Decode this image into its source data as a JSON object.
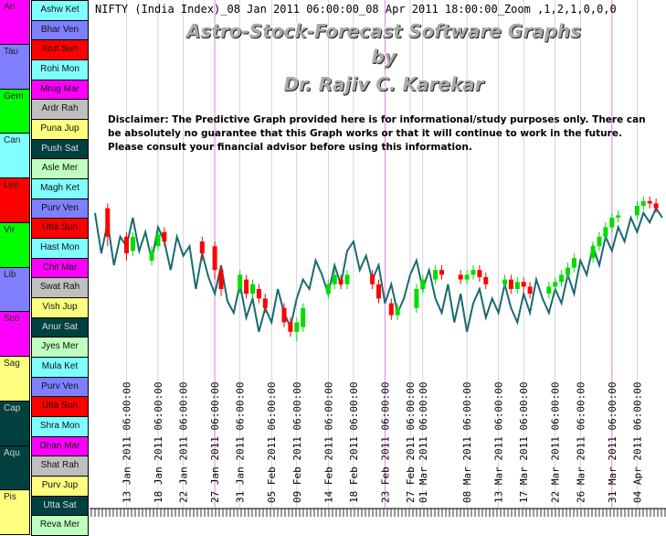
{
  "header": {
    "info_line": "NIFTY (India Index)_08 Jan 2011 06:00:00_08 Apr 2011 18:00:00_Zoom ,1,2,1,0,0,0",
    "title_line1": "Astro-Stock-Forecast Software Graphs",
    "title_line2": "by",
    "title_line3": "Dr. Rajiv C. Karekar",
    "disclaimer": "Disclaimer: The Predictive Graph provided here is for informational/study purposes only. There can be absolutely no guarantee that this Graph works or that it will continue to work in the future. Please consult your financial advisor before using this information."
  },
  "zodiac_signs": [
    {
      "label": "Ari",
      "color": "#ff00ff"
    },
    {
      "label": "Tau",
      "color": "#7f7fff"
    },
    {
      "label": "Gem",
      "color": "#00ff00"
    },
    {
      "label": "Can",
      "color": "#7fffff"
    },
    {
      "label": "Leo",
      "color": "#ff0000"
    },
    {
      "label": "Vir",
      "color": "#00ff00"
    },
    {
      "label": "Lib",
      "color": "#7f7fff"
    },
    {
      "label": "Sco",
      "color": "#ff00ff"
    },
    {
      "label": "Sag",
      "color": "#ffff7f"
    },
    {
      "label": "Cap",
      "color": "#00403f"
    },
    {
      "label": "Aqu",
      "color": "#00403f"
    },
    {
      "label": "Pis",
      "color": "#ffff7f"
    }
  ],
  "nakshatras": [
    {
      "label": "Ashw Ket",
      "color": "#7fffff"
    },
    {
      "label": "Bhar Ven",
      "color": "#7f7fff"
    },
    {
      "label": "Krut Sun",
      "color": "#ff0000"
    },
    {
      "label": "Rohi Mon",
      "color": "#7fffff"
    },
    {
      "label": "Mrug Mar",
      "color": "#ff00ff"
    },
    {
      "label": "Ardr Rah",
      "color": "#bfbfbf"
    },
    {
      "label": "Puna Jup",
      "color": "#ffff7f"
    },
    {
      "label": "Push Sat",
      "color": "#00403f"
    },
    {
      "label": "Asle Mer",
      "color": "#bfffbf"
    },
    {
      "label": "Magh Ket",
      "color": "#7fffff"
    },
    {
      "label": "Purv Ven",
      "color": "#7f7fff"
    },
    {
      "label": "Utta Sun",
      "color": "#ff0000"
    },
    {
      "label": "Hast Mon",
      "color": "#7fffff"
    },
    {
      "label": "Chit Mar",
      "color": "#ff00ff"
    },
    {
      "label": "Swat Rah",
      "color": "#bfbfbf"
    },
    {
      "label": "Vish Jup",
      "color": "#ffff7f"
    },
    {
      "label": "Anur Sat",
      "color": "#00403f"
    },
    {
      "label": "Jyes Mer",
      "color": "#bfffbf"
    },
    {
      "label": "Mula Ket",
      "color": "#7fffff"
    },
    {
      "label": "Purv Ven",
      "color": "#7f7fff"
    },
    {
      "label": "Utta Sun",
      "color": "#ff0000"
    },
    {
      "label": "Shra Mon",
      "color": "#7fffff"
    },
    {
      "label": "Dhan Mar",
      "color": "#ff00ff"
    },
    {
      "label": "Shat Rah",
      "color": "#bfbfbf"
    },
    {
      "label": "Purv Jup",
      "color": "#ffff7f"
    },
    {
      "label": "Utta Sat",
      "color": "#00403f"
    },
    {
      "label": "Reva Mer",
      "color": "#bfffbf"
    }
  ],
  "chart_data": {
    "type": "line",
    "x": [
      "2011-01-08",
      "2011-01-09",
      "2011-01-10",
      "2011-01-11",
      "2011-01-12",
      "2011-01-13",
      "2011-01-14",
      "2011-01-15",
      "2011-01-16",
      "2011-01-17",
      "2011-01-18",
      "2011-01-19",
      "2011-01-20",
      "2011-01-21",
      "2011-01-22",
      "2011-01-23",
      "2011-01-24",
      "2011-01-25",
      "2011-01-26",
      "2011-01-27",
      "2011-01-28",
      "2011-01-29",
      "2011-01-30",
      "2011-01-31",
      "2011-02-01",
      "2011-02-02",
      "2011-02-03",
      "2011-02-04",
      "2011-02-05",
      "2011-02-06",
      "2011-02-07",
      "2011-02-08",
      "2011-02-09",
      "2011-02-10",
      "2011-02-11",
      "2011-02-12",
      "2011-02-13",
      "2011-02-14",
      "2011-02-15",
      "2011-02-16",
      "2011-02-17",
      "2011-02-18",
      "2011-02-19",
      "2011-02-20",
      "2011-02-21",
      "2011-02-22",
      "2011-02-23",
      "2011-02-24",
      "2011-02-25",
      "2011-02-26",
      "2011-02-27",
      "2011-02-28",
      "2011-03-01",
      "2011-03-02",
      "2011-03-03",
      "2011-03-04",
      "2011-03-05",
      "2011-03-06",
      "2011-03-07",
      "2011-03-08",
      "2011-03-09",
      "2011-03-10",
      "2011-03-11",
      "2011-03-12",
      "2011-03-13",
      "2011-03-14",
      "2011-03-15",
      "2011-03-16",
      "2011-03-17",
      "2011-03-18",
      "2011-03-19",
      "2011-03-20",
      "2011-03-21",
      "2011-03-22",
      "2011-03-23",
      "2011-03-24",
      "2011-03-25",
      "2011-03-26",
      "2011-03-27",
      "2011-03-28",
      "2011-03-29",
      "2011-03-30",
      "2011-03-31",
      "2011-04-01",
      "2011-04-02",
      "2011-04-03",
      "2011-04-04",
      "2011-04-05",
      "2011-04-06",
      "2011-04-07",
      "2011-04-08"
    ],
    "forecast_values": [
      0.72,
      0.55,
      0.68,
      0.5,
      0.62,
      0.58,
      0.7,
      0.56,
      0.64,
      0.52,
      0.66,
      0.6,
      0.48,
      0.62,
      0.54,
      0.58,
      0.4,
      0.55,
      0.45,
      0.38,
      0.5,
      0.35,
      0.3,
      0.42,
      0.28,
      0.36,
      0.22,
      0.32,
      0.26,
      0.4,
      0.3,
      0.24,
      0.36,
      0.44,
      0.4,
      0.52,
      0.46,
      0.38,
      0.5,
      0.42,
      0.56,
      0.6,
      0.48,
      0.54,
      0.44,
      0.5,
      0.34,
      0.42,
      0.3,
      0.36,
      0.46,
      0.52,
      0.4,
      0.48,
      0.36,
      0.3,
      0.42,
      0.26,
      0.38,
      0.22,
      0.34,
      0.4,
      0.28,
      0.36,
      0.3,
      0.42,
      0.32,
      0.26,
      0.38,
      0.3,
      0.44,
      0.36,
      0.3,
      0.4,
      0.34,
      0.46,
      0.38,
      0.52,
      0.46,
      0.58,
      0.5,
      0.62,
      0.56,
      0.66,
      0.6,
      0.7,
      0.64,
      0.72,
      0.68,
      0.74,
      0.7
    ],
    "candles": [
      {
        "x": "2011-01-10",
        "open": 0.74,
        "close": 0.62,
        "high": 0.76,
        "low": 0.58
      },
      {
        "x": "2011-01-13",
        "open": 0.62,
        "close": 0.55,
        "high": 0.64,
        "low": 0.52
      },
      {
        "x": "2011-01-14",
        "open": 0.56,
        "close": 0.62,
        "high": 0.64,
        "low": 0.54
      },
      {
        "x": "2011-01-17",
        "open": 0.52,
        "close": 0.56,
        "high": 0.58,
        "low": 0.5
      },
      {
        "x": "2011-01-18",
        "open": 0.58,
        "close": 0.63,
        "high": 0.65,
        "low": 0.56
      },
      {
        "x": "2011-01-19",
        "open": 0.64,
        "close": 0.6,
        "high": 0.66,
        "low": 0.58
      },
      {
        "x": "2011-01-25",
        "open": 0.6,
        "close": 0.55,
        "high": 0.62,
        "low": 0.52
      },
      {
        "x": "2011-01-27",
        "open": 0.58,
        "close": 0.48,
        "high": 0.6,
        "low": 0.44
      },
      {
        "x": "2011-01-28",
        "open": 0.48,
        "close": 0.4,
        "high": 0.5,
        "low": 0.37
      },
      {
        "x": "2011-01-31",
        "open": 0.4,
        "close": 0.46,
        "high": 0.48,
        "low": 0.38
      },
      {
        "x": "2011-02-01",
        "open": 0.44,
        "close": 0.38,
        "high": 0.46,
        "low": 0.36
      },
      {
        "x": "2011-02-02",
        "open": 0.38,
        "close": 0.42,
        "high": 0.44,
        "low": 0.36
      },
      {
        "x": "2011-02-03",
        "open": 0.4,
        "close": 0.36,
        "high": 0.42,
        "low": 0.34
      },
      {
        "x": "2011-02-04",
        "open": 0.36,
        "close": 0.32,
        "high": 0.38,
        "low": 0.3
      },
      {
        "x": "2011-02-07",
        "open": 0.32,
        "close": 0.26,
        "high": 0.34,
        "low": 0.24
      },
      {
        "x": "2011-02-08",
        "open": 0.26,
        "close": 0.22,
        "high": 0.28,
        "low": 0.2
      },
      {
        "x": "2011-02-09",
        "open": 0.22,
        "close": 0.26,
        "high": 0.28,
        "low": 0.18
      },
      {
        "x": "2011-02-10",
        "open": 0.24,
        "close": 0.32,
        "high": 0.34,
        "low": 0.22
      },
      {
        "x": "2011-02-14",
        "open": 0.38,
        "close": 0.42,
        "high": 0.44,
        "low": 0.36
      },
      {
        "x": "2011-02-15",
        "open": 0.42,
        "close": 0.46,
        "high": 0.48,
        "low": 0.4
      },
      {
        "x": "2011-02-16",
        "open": 0.44,
        "close": 0.42,
        "high": 0.46,
        "low": 0.4
      },
      {
        "x": "2011-02-17",
        "open": 0.42,
        "close": 0.46,
        "high": 0.48,
        "low": 0.4
      },
      {
        "x": "2011-02-21",
        "open": 0.46,
        "close": 0.42,
        "high": 0.48,
        "low": 0.4
      },
      {
        "x": "2011-02-22",
        "open": 0.42,
        "close": 0.36,
        "high": 0.44,
        "low": 0.34
      },
      {
        "x": "2011-02-24",
        "open": 0.34,
        "close": 0.29,
        "high": 0.36,
        "low": 0.27
      },
      {
        "x": "2011-02-25",
        "open": 0.29,
        "close": 0.32,
        "high": 0.34,
        "low": 0.27
      },
      {
        "x": "2011-02-28",
        "open": 0.32,
        "close": 0.4,
        "high": 0.42,
        "low": 0.3
      },
      {
        "x": "2011-03-01",
        "open": 0.4,
        "close": 0.44,
        "high": 0.46,
        "low": 0.38
      },
      {
        "x": "2011-03-03",
        "open": 0.44,
        "close": 0.48,
        "high": 0.5,
        "low": 0.42
      },
      {
        "x": "2011-03-04",
        "open": 0.48,
        "close": 0.46,
        "high": 0.5,
        "low": 0.44
      },
      {
        "x": "2011-03-07",
        "open": 0.46,
        "close": 0.44,
        "high": 0.48,
        "low": 0.42
      },
      {
        "x": "2011-03-08",
        "open": 0.44,
        "close": 0.46,
        "high": 0.48,
        "low": 0.42
      },
      {
        "x": "2011-03-09",
        "open": 0.46,
        "close": 0.48,
        "high": 0.5,
        "low": 0.44
      },
      {
        "x": "2011-03-10",
        "open": 0.48,
        "close": 0.45,
        "high": 0.5,
        "low": 0.43
      },
      {
        "x": "2011-03-11",
        "open": 0.45,
        "close": 0.42,
        "high": 0.47,
        "low": 0.4
      },
      {
        "x": "2011-03-14",
        "open": 0.42,
        "close": 0.44,
        "high": 0.46,
        "low": 0.4
      },
      {
        "x": "2011-03-15",
        "open": 0.44,
        "close": 0.4,
        "high": 0.46,
        "low": 0.38
      },
      {
        "x": "2011-03-16",
        "open": 0.4,
        "close": 0.43,
        "high": 0.45,
        "low": 0.38
      },
      {
        "x": "2011-03-17",
        "open": 0.43,
        "close": 0.41,
        "high": 0.45,
        "low": 0.39
      },
      {
        "x": "2011-03-18",
        "open": 0.41,
        "close": 0.38,
        "high": 0.43,
        "low": 0.36
      },
      {
        "x": "2011-03-21",
        "open": 0.38,
        "close": 0.41,
        "high": 0.43,
        "low": 0.36
      },
      {
        "x": "2011-03-22",
        "open": 0.41,
        "close": 0.43,
        "high": 0.45,
        "low": 0.39
      },
      {
        "x": "2011-03-23",
        "open": 0.43,
        "close": 0.46,
        "high": 0.48,
        "low": 0.41
      },
      {
        "x": "2011-03-24",
        "open": 0.46,
        "close": 0.49,
        "high": 0.51,
        "low": 0.44
      },
      {
        "x": "2011-03-25",
        "open": 0.49,
        "close": 0.53,
        "high": 0.55,
        "low": 0.47
      },
      {
        "x": "2011-03-28",
        "open": 0.53,
        "close": 0.58,
        "high": 0.6,
        "low": 0.51
      },
      {
        "x": "2011-03-29",
        "open": 0.58,
        "close": 0.62,
        "high": 0.64,
        "low": 0.56
      },
      {
        "x": "2011-03-30",
        "open": 0.62,
        "close": 0.66,
        "high": 0.68,
        "low": 0.6
      },
      {
        "x": "2011-03-31",
        "open": 0.66,
        "close": 0.7,
        "high": 0.72,
        "low": 0.64
      },
      {
        "x": "2011-04-01",
        "open": 0.7,
        "close": 0.71,
        "high": 0.73,
        "low": 0.68
      },
      {
        "x": "2011-04-04",
        "open": 0.71,
        "close": 0.75,
        "high": 0.77,
        "low": 0.69
      },
      {
        "x": "2011-04-05",
        "open": 0.75,
        "close": 0.77,
        "high": 0.79,
        "low": 0.73
      },
      {
        "x": "2011-04-06",
        "open": 0.77,
        "close": 0.76,
        "high": 0.79,
        "low": 0.74
      },
      {
        "x": "2011-04-07",
        "open": 0.76,
        "close": 0.74,
        "high": 0.78,
        "low": 0.72
      }
    ],
    "x_tick_labels": [
      "13 Jan 2011 06:00:00",
      "18 Jan 2011 06:00:00",
      "22 Jan 2011 06:00:00",
      "27 Jan 2011 06:00:00",
      "31 Jan 2011 06:00:00",
      "05 Feb 2011 06:00:00",
      "09 Feb 2011 06:00:00",
      "14 Feb 2011 06:00:00",
      "18 Feb 2011 06:00:00",
      "23 Feb 2011 06:00:00",
      "27 Feb 2011 06:00:00",
      "01 Mar 2011 06:00:00",
      "08 Mar 2011 06:00:00",
      "13 Mar 2011 06:00:00",
      "17 Mar 2011 06:00:00",
      "22 Mar 2011 06:00:00",
      "26 Mar 2011 06:00:00",
      "31 Mar 2011 06:00:00",
      "04 Apr 2011 06:00:00"
    ],
    "x_tick_dates": [
      "2011-01-13",
      "2011-01-18",
      "2011-01-22",
      "2011-01-27",
      "2011-01-31",
      "2011-02-05",
      "2011-02-09",
      "2011-02-14",
      "2011-02-18",
      "2011-02-23",
      "2011-02-27",
      "2011-03-01",
      "2011-03-08",
      "2011-03-13",
      "2011-03-17",
      "2011-03-22",
      "2011-03-26",
      "2011-03-31",
      "2011-04-04"
    ],
    "xlim": [
      "2011-01-08",
      "2011-04-08"
    ],
    "highlight_dates": [
      "2011-01-27",
      "2011-02-23",
      "2011-03-31"
    ],
    "colors": {
      "forecast": "#1a6a70",
      "up": "#00dd00",
      "down": "#ff0000",
      "highlight": "#dd88dd",
      "grid": "#bbbbbb"
    }
  }
}
